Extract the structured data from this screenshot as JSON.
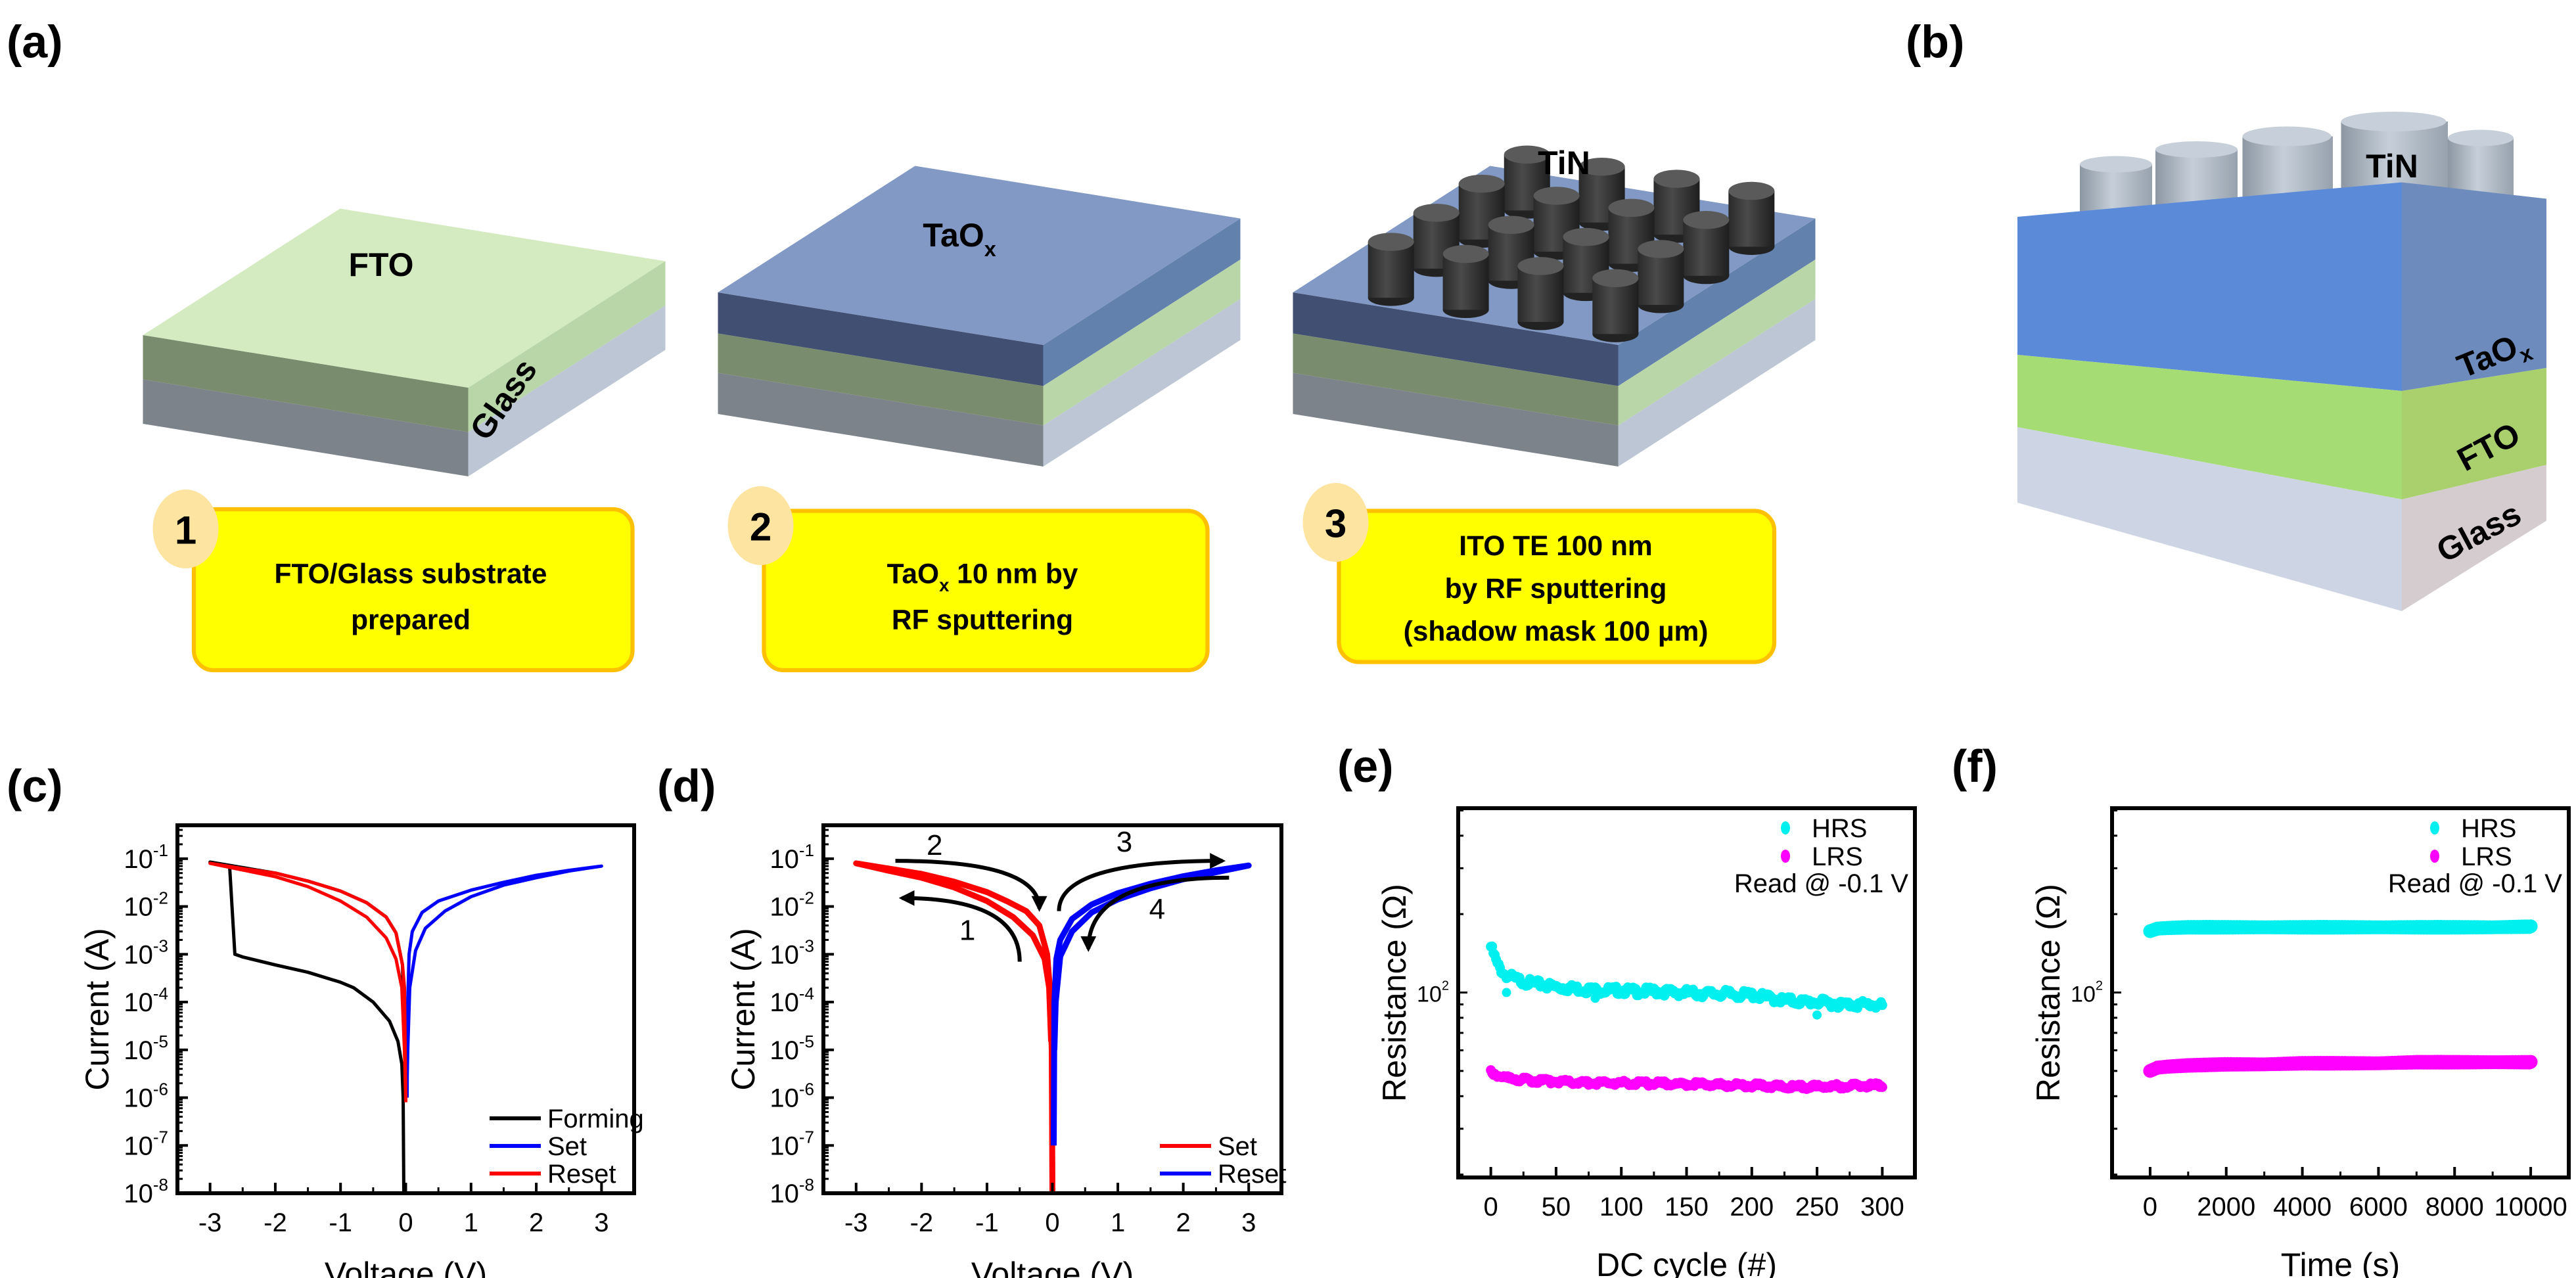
{
  "panel_labels": {
    "a": "(a)",
    "b": "(b)",
    "c": "(c)",
    "d": "(d)",
    "e": "(e)",
    "f": "(f)"
  },
  "schematic": {
    "block1": {
      "top_label": "FTO",
      "side_label": "Glass"
    },
    "block2": {
      "top_label_main": "TaO",
      "top_label_sub": "x"
    },
    "block3": {
      "electrode_label": "TiN"
    },
    "steps": [
      {
        "number": "1",
        "line1": "FTO/Glass substrate",
        "line2": "prepared"
      },
      {
        "number": "2",
        "line1_main": "TaO",
        "line1_sub": "x",
        "line1_rest": " 10 nm by",
        "line2": "RF sputtering"
      },
      {
        "number": "3",
        "line1": "ITO TE 100 nm",
        "line2": "by RF sputtering",
        "line3": "(shadow mask 100 µm)"
      }
    ]
  },
  "structure_b": {
    "electrode": "TiN",
    "layer1_main": "TaO",
    "layer1_sub": "x",
    "layer2": "FTO",
    "layer3": "Glass"
  },
  "colors": {
    "fto_top": "#d4eac0",
    "fto_left": "#7a8c6e",
    "fto_right": "#b9d6a8",
    "glass_left": "#7d838a",
    "glass_right": "#bcc6d4",
    "taox_top": "#8199c4",
    "taox_left": "#414f72",
    "taox_right": "#6381ad",
    "step_box": "#ffff00",
    "step_border": "#ffc000",
    "step_circle": "#fde4a0",
    "set_c": "#0000ff",
    "reset_c": "#ff0000",
    "forming": "#000000",
    "hrs": "#00f0f0",
    "lrs": "#ff00ff"
  },
  "chart_data": [
    {
      "panel": "c",
      "type": "line",
      "xlabel": "Voltage (V)",
      "ylabel": "Current (A)",
      "xlim": [
        -3.5,
        3.5
      ],
      "ylim": [
        1e-08,
        0.5
      ],
      "yscale": "log",
      "xticks": [
        {
          "v": -3,
          "t": "-3"
        },
        {
          "v": -2,
          "t": "-2"
        },
        {
          "v": -1,
          "t": "-1"
        },
        {
          "v": 0,
          "t": "0"
        },
        {
          "v": 1,
          "t": "1"
        },
        {
          "v": 2,
          "t": "2"
        },
        {
          "v": 3,
          "t": "3"
        }
      ],
      "yticks": [
        {
          "v": 0.1,
          "base": "10",
          "exp": "-1"
        },
        {
          "v": 0.01,
          "base": "10",
          "exp": "-2"
        },
        {
          "v": 0.001,
          "base": "10",
          "exp": "-3"
        },
        {
          "v": 0.0001,
          "base": "10",
          "exp": "-4"
        },
        {
          "v": 1e-05,
          "base": "10",
          "exp": "-5"
        },
        {
          "v": 1e-06,
          "base": "10",
          "exp": "-6"
        },
        {
          "v": 1e-07,
          "base": "10",
          "exp": "-7"
        },
        {
          "v": 1e-08,
          "base": "10",
          "exp": "-8"
        }
      ],
      "legend_position": "bottom-right",
      "series": [
        {
          "name": "Forming",
          "color": "#000000",
          "points": [
            [
              -0.03,
              1e-08
            ],
            [
              -0.04,
              1e-06
            ],
            [
              -0.06,
              5e-06
            ],
            [
              -0.12,
              1.5e-05
            ],
            [
              -0.25,
              4e-05
            ],
            [
              -0.5,
              0.0001
            ],
            [
              -0.8,
              0.0002
            ],
            [
              -1.0,
              0.00026
            ],
            [
              -1.5,
              0.00042
            ],
            [
              -2.0,
              0.0006
            ],
            [
              -2.5,
              0.00088
            ],
            [
              -2.62,
              0.001
            ],
            [
              -2.7,
              0.07
            ],
            [
              -3.0,
              0.085
            ],
            [
              -2.5,
              0.065
            ],
            [
              -2.0,
              0.05
            ],
            [
              -1.5,
              0.034
            ],
            [
              -1.0,
              0.021
            ],
            [
              -0.6,
              0.012
            ],
            [
              -0.3,
              0.006
            ],
            [
              -0.15,
              0.0028
            ],
            [
              -0.05,
              0.0006
            ],
            [
              0,
              1e-06
            ]
          ]
        },
        {
          "name": "Set",
          "color": "#0000ff",
          "points": [
            [
              0.02,
              1e-06
            ],
            [
              0.03,
              0.0001
            ],
            [
              0.05,
              0.001
            ],
            [
              0.1,
              0.003
            ],
            [
              0.25,
              0.0075
            ],
            [
              0.5,
              0.013
            ],
            [
              1.0,
              0.022
            ],
            [
              1.5,
              0.032
            ],
            [
              2.0,
              0.045
            ],
            [
              2.5,
              0.057
            ],
            [
              3.0,
              0.07
            ],
            [
              2.5,
              0.055
            ],
            [
              2.0,
              0.04
            ],
            [
              1.5,
              0.028
            ],
            [
              1.0,
              0.016
            ],
            [
              0.6,
              0.008
            ],
            [
              0.3,
              0.0035
            ],
            [
              0.15,
              0.0012
            ],
            [
              0.06,
              0.0002
            ],
            [
              0.03,
              1e-05
            ],
            [
              0.02,
              2e-06
            ]
          ]
        },
        {
          "name": "Reset",
          "color": "#ff0000",
          "points": [
            [
              0,
              8e-07
            ],
            [
              -0.02,
              0.0002
            ],
            [
              -0.05,
              0.0006
            ],
            [
              -0.15,
              0.0028
            ],
            [
              -0.3,
              0.006
            ],
            [
              -0.6,
              0.012
            ],
            [
              -1.0,
              0.021
            ],
            [
              -1.5,
              0.034
            ],
            [
              -2.0,
              0.05
            ],
            [
              -2.5,
              0.062
            ],
            [
              -3.0,
              0.08
            ],
            [
              -2.5,
              0.058
            ],
            [
              -2.0,
              0.042
            ],
            [
              -1.5,
              0.026
            ],
            [
              -1.0,
              0.013
            ],
            [
              -0.6,
              0.006
            ],
            [
              -0.3,
              0.0022
            ],
            [
              -0.15,
              0.0008
            ],
            [
              -0.06,
              0.0002
            ],
            [
              -0.02,
              1e-05
            ],
            [
              0,
              8e-07
            ]
          ]
        }
      ]
    },
    {
      "panel": "d",
      "type": "line",
      "xlabel": "Voltage (V)",
      "ylabel": "Current (A)",
      "xlim": [
        -3.5,
        3.5
      ],
      "ylim": [
        1e-08,
        0.5
      ],
      "yscale": "log",
      "xticks": [
        {
          "v": -3,
          "t": "-3"
        },
        {
          "v": -2,
          "t": "-2"
        },
        {
          "v": -1,
          "t": "-1"
        },
        {
          "v": 0,
          "t": "0"
        },
        {
          "v": 1,
          "t": "1"
        },
        {
          "v": 2,
          "t": "2"
        },
        {
          "v": 3,
          "t": "3"
        }
      ],
      "yticks": [
        {
          "v": 0.1,
          "base": "10",
          "exp": "-1"
        },
        {
          "v": 0.01,
          "base": "10",
          "exp": "-2"
        },
        {
          "v": 0.001,
          "base": "10",
          "exp": "-3"
        },
        {
          "v": 0.0001,
          "base": "10",
          "exp": "-4"
        },
        {
          "v": 1e-05,
          "base": "10",
          "exp": "-5"
        },
        {
          "v": 1e-06,
          "base": "10",
          "exp": "-6"
        },
        {
          "v": 1e-07,
          "base": "10",
          "exp": "-7"
        },
        {
          "v": 1e-08,
          "base": "10",
          "exp": "-8"
        }
      ],
      "legend_position": "bottom-right",
      "series": [
        {
          "name": "Set",
          "color": "#ff0000",
          "points": [
            [
              0,
              1e-08
            ],
            [
              -0.01,
              1e-05
            ],
            [
              -0.04,
              0.0002
            ],
            [
              -0.08,
              0.001
            ],
            [
              -0.2,
              0.004
            ],
            [
              -0.4,
              0.008
            ],
            [
              -0.7,
              0.013
            ],
            [
              -1.0,
              0.02
            ],
            [
              -1.5,
              0.033
            ],
            [
              -2.0,
              0.048
            ],
            [
              -2.5,
              0.062
            ],
            [
              -3.0,
              0.08
            ],
            [
              -2.5,
              0.056
            ],
            [
              -2.0,
              0.04
            ],
            [
              -1.5,
              0.025
            ],
            [
              -1.0,
              0.013
            ],
            [
              -0.6,
              0.006
            ],
            [
              -0.3,
              0.0025
            ],
            [
              -0.12,
              0.0008
            ],
            [
              -0.05,
              0.0002
            ],
            [
              -0.02,
              1.5e-05
            ]
          ]
        },
        {
          "name": "Reset",
          "color": "#0000ff",
          "points": [
            [
              0.02,
              1e-07
            ],
            [
              0.03,
              0.0001
            ],
            [
              0.06,
              0.0008
            ],
            [
              0.12,
              0.002
            ],
            [
              0.3,
              0.0055
            ],
            [
              0.6,
              0.011
            ],
            [
              1.0,
              0.019
            ],
            [
              1.5,
              0.03
            ],
            [
              2.0,
              0.043
            ],
            [
              2.5,
              0.057
            ],
            [
              3.0,
              0.072
            ],
            [
              2.5,
              0.052
            ],
            [
              2.0,
              0.037
            ],
            [
              1.5,
              0.024
            ],
            [
              1.0,
              0.014
            ],
            [
              0.6,
              0.0075
            ],
            [
              0.3,
              0.003
            ],
            [
              0.12,
              0.0009
            ],
            [
              0.05,
              0.0001
            ],
            [
              0.03,
              1e-05
            ]
          ]
        }
      ],
      "annotations": [
        {
          "label": "1",
          "from": [
            -0.5,
            0.0007
          ],
          "to": [
            -2.3,
            0.015
          ],
          "label_at": [
            -1.3,
            0.002
          ],
          "bend": "vertical-first"
        },
        {
          "label": "2",
          "from": [
            -2.4,
            0.09
          ],
          "to": [
            -0.2,
            0.009
          ],
          "label_at": [
            -1.8,
            0.12
          ],
          "bend": "horizontal-first"
        },
        {
          "label": "3",
          "from": [
            0.1,
            0.008
          ],
          "to": [
            2.6,
            0.09
          ],
          "label_at": [
            1.1,
            0.14
          ],
          "bend": "vertical-first"
        },
        {
          "label": "4",
          "from": [
            2.7,
            0.04
          ],
          "to": [
            0.55,
            0.0013
          ],
          "label_at": [
            1.6,
            0.0055
          ],
          "bend": "horizontal-first"
        }
      ]
    },
    {
      "panel": "e",
      "type": "scatter",
      "xlabel": "DC cycle (#)",
      "ylabel": "Resistance (Ω)",
      "xlim": [
        -25,
        325
      ],
      "ylim": [
        19.5,
        510
      ],
      "yscale": "log",
      "xticks": [
        {
          "v": 0,
          "t": "0"
        },
        {
          "v": 50,
          "t": "50"
        },
        {
          "v": 100,
          "t": "100"
        },
        {
          "v": 150,
          "t": "150"
        },
        {
          "v": 200,
          "t": "200"
        },
        {
          "v": 250,
          "t": "250"
        },
        {
          "v": 300,
          "t": "300"
        }
      ],
      "yticks": [
        {
          "v": 100,
          "base": "10",
          "exp": "2"
        }
      ],
      "note": "Read @ -0.1 V",
      "legend_position": "top-right",
      "series": [
        {
          "name": "HRS",
          "color": "#00f0f0",
          "x": [
            0,
            5,
            10,
            20,
            30,
            40,
            50,
            60,
            70,
            80,
            90,
            100,
            110,
            120,
            130,
            140,
            150,
            160,
            170,
            180,
            190,
            200,
            210,
            220,
            230,
            240,
            250,
            260,
            270,
            280,
            290,
            300
          ],
          "y": [
            150,
            128,
            118,
            112,
            109,
            107,
            105,
            104,
            103,
            102,
            102,
            102,
            101,
            101,
            101,
            100,
            100,
            99,
            99,
            99,
            98,
            98,
            96,
            94,
            93,
            92,
            92,
            91,
            90,
            90,
            90,
            89
          ]
        },
        {
          "name": "LRS",
          "color": "#ff00ff",
          "x": [
            0,
            5,
            10,
            20,
            30,
            50,
            80,
            100,
            150,
            200,
            220,
            250,
            300
          ],
          "y": [
            50,
            48,
            47,
            46.5,
            46,
            45.5,
            45,
            45,
            44.5,
            44,
            43.5,
            43.5,
            44
          ]
        }
      ],
      "outliers": [
        {
          "series": "HRS",
          "x": 12,
          "y": 100
        },
        {
          "series": "HRS",
          "x": 80,
          "y": 95
        },
        {
          "series": "HRS",
          "x": 250,
          "y": 82
        }
      ]
    },
    {
      "panel": "f",
      "type": "scatter",
      "xlabel": "Time (s)",
      "ylabel": "Resistance (Ω)",
      "xlim": [
        -1000,
        11000
      ],
      "ylim": [
        19.5,
        510
      ],
      "yscale": "log",
      "xticks": [
        {
          "v": 0,
          "t": "0"
        },
        {
          "v": 2000,
          "t": "2000"
        },
        {
          "v": 4000,
          "t": "4000"
        },
        {
          "v": 6000,
          "t": "6000"
        },
        {
          "v": 8000,
          "t": "8000"
        },
        {
          "v": 10000,
          "t": "10000"
        }
      ],
      "yticks": [
        {
          "v": 100,
          "base": "10",
          "exp": "2"
        }
      ],
      "note": "Read @ -0.1 V",
      "legend_position": "top-right",
      "series": [
        {
          "name": "HRS",
          "color": "#00f0f0",
          "x": [
            0,
            200,
            500,
            1000,
            2000,
            3000,
            4000,
            5000,
            6000,
            7000,
            8000,
            9000,
            10000
          ],
          "y": [
            172,
            176,
            177,
            178,
            178,
            178,
            178,
            178,
            178,
            178,
            178,
            178,
            179
          ]
        },
        {
          "name": "LRS",
          "color": "#ff00ff",
          "x": [
            0,
            200,
            500,
            1000,
            2000,
            3000,
            4000,
            5000,
            6000,
            7000,
            8000,
            9000,
            10000
          ],
          "y": [
            50,
            51.5,
            52,
            52.5,
            53,
            53,
            53.5,
            53.5,
            53.5,
            54,
            54,
            54,
            54
          ]
        }
      ]
    }
  ]
}
